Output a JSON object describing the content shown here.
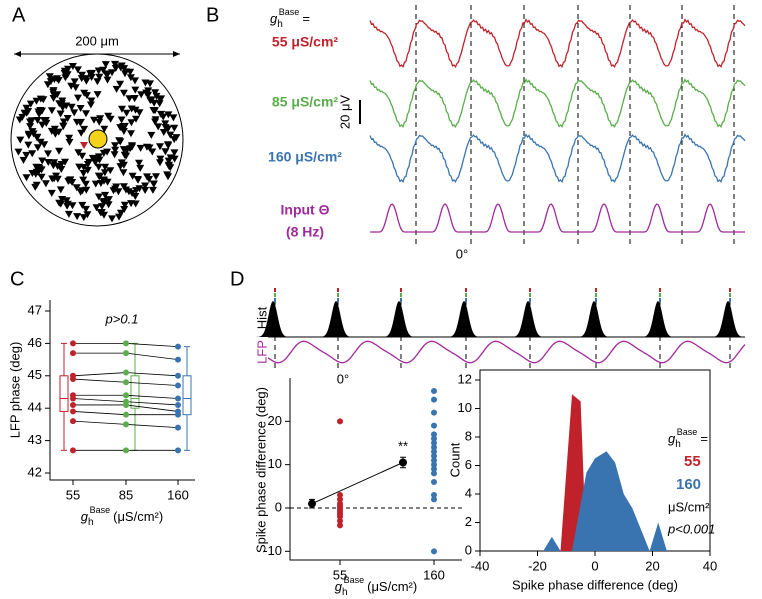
{
  "panel_a": {
    "label": "A",
    "scale_label": "200 μm"
  },
  "panel_b": {
    "label": "B",
    "param": {
      "g": "g",
      "sub": "h",
      "sup": "Base",
      "eq": "="
    },
    "traces": [
      {
        "name": "55 μS/cm²",
        "color": "#c0222c"
      },
      {
        "name": "85 μS/cm²",
        "color": "#5aad4a"
      },
      {
        "name": "160 μS/cm²",
        "color": "#3a74b0"
      }
    ],
    "input": {
      "name": "Input Θ",
      "freq": "(8 Hz)",
      "color": "#a02a9a"
    },
    "scale_label": "20 μV",
    "phase_label": "0°"
  },
  "panel_d_top": {
    "label": "D",
    "hist_label": "Hist",
    "lfp_label": "LFP",
    "phase_label": "0°"
  },
  "chart_data": [
    {
      "type": "paired",
      "panel_label": "C",
      "title": "p>0.1",
      "ylabel": "LFP phase (deg)",
      "xlabel": {
        "g": "g",
        "sub": "h",
        "sup": "Base",
        "unit": "(μS/cm²)"
      },
      "categories": [
        "55",
        "85",
        "160"
      ],
      "colors": [
        "#c0222c",
        "#5aad4a",
        "#3a74b0"
      ],
      "cells": [
        [
          46.0,
          46.0,
          45.9
        ],
        [
          45.7,
          45.7,
          45.5
        ],
        [
          45.0,
          45.1,
          45.0
        ],
        [
          44.9,
          44.8,
          44.7
        ],
        [
          44.4,
          44.4,
          44.3
        ],
        [
          44.3,
          44.2,
          44.1
        ],
        [
          44.1,
          44.1,
          43.9
        ],
        [
          43.9,
          43.8,
          43.8
        ],
        [
          43.6,
          43.5,
          43.4
        ],
        [
          42.7,
          42.7,
          42.7
        ]
      ],
      "boxes": [
        {
          "min": 42.7,
          "q1": 43.9,
          "median": 44.3,
          "q3": 45.0,
          "max": 46.0
        },
        {
          "min": 42.7,
          "q1": 44.0,
          "median": 44.3,
          "q3": 45.0,
          "max": 46.0
        },
        {
          "min": 42.7,
          "q1": 43.8,
          "median": 44.3,
          "q3": 45.0,
          "max": 45.9
        }
      ],
      "ylim": [
        42,
        47
      ],
      "yticks": [
        42,
        43,
        44,
        45,
        46,
        47
      ]
    },
    {
      "type": "strip",
      "ylabel": "Spike phase difference (deg)",
      "xlabel": {
        "g": "g",
        "sub": "h",
        "sup": "Base",
        "unit": "(μS/cm²)"
      },
      "categories": [
        "55",
        "160"
      ],
      "series": [
        {
          "color": "#c0222c",
          "values": [
            20,
            3,
            2,
            1,
            0.5,
            0,
            -0.5,
            -1,
            -1.5,
            -2,
            -3,
            -4
          ]
        },
        {
          "color": "#3a74b0",
          "values": [
            27,
            25,
            22,
            19,
            17,
            16,
            15,
            14,
            13,
            12,
            11,
            10,
            9,
            8,
            6,
            3,
            2,
            -10
          ]
        }
      ],
      "means": {
        "color": "#000000",
        "values": [
          1,
          10.5
        ],
        "errors": [
          1,
          1.2
        ]
      },
      "annotation": "**",
      "reference_line": 0,
      "ylim": [
        -12,
        30
      ],
      "yticks": [
        -10,
        0,
        10,
        20
      ]
    },
    {
      "type": "area",
      "xlabel": "Spike phase difference (deg)",
      "ylabel": "Count",
      "series": [
        {
          "name": "55",
          "color": "#c0222c",
          "x": [
            -40,
            -12,
            -8,
            -5,
            -3,
            20,
            22,
            24,
            40
          ],
          "values": [
            0,
            0,
            11,
            10.5,
            0,
            0,
            1,
            0,
            0
          ]
        },
        {
          "name": "160",
          "color": "#3a74b0",
          "x": [
            -40,
            -18,
            -15,
            -12,
            -8,
            -3,
            0,
            4,
            7,
            10,
            13,
            17,
            19,
            22,
            25,
            40
          ],
          "values": [
            0,
            0,
            1,
            0,
            0,
            5.5,
            6.5,
            7,
            6.2,
            4,
            3,
            1,
            0,
            2,
            0,
            0
          ]
        }
      ],
      "legend": {
        "g": "g",
        "sub": "h",
        "sup": "Base",
        "eq": "=",
        "unit": "μS/cm²",
        "note": "p<0.001"
      },
      "xlim": [
        -40,
        40
      ],
      "xticks": [
        -40,
        -20,
        0,
        20,
        40
      ],
      "ylim": [
        0,
        12
      ],
      "yticks": [
        0,
        2,
        4,
        6,
        8,
        10,
        12
      ]
    }
  ]
}
